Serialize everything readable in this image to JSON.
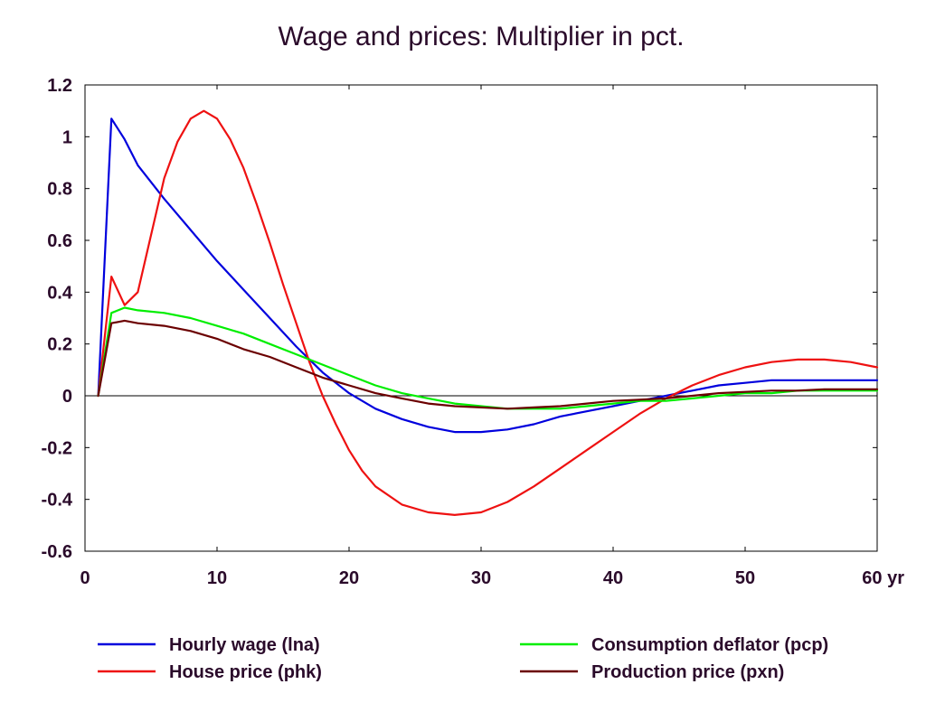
{
  "chart_data": {
    "type": "line",
    "title": "Wage and prices: Multiplier in pct.",
    "xlabel": "yr",
    "ylabel": "",
    "xlim": [
      0,
      60
    ],
    "ylim": [
      -0.6,
      1.2
    ],
    "x_ticks": [
      "0",
      "10",
      "20",
      "30",
      "40",
      "50",
      "60 yr"
    ],
    "x_tick_values": [
      0,
      10,
      20,
      30,
      40,
      50,
      60
    ],
    "y_ticks": [
      "1.2",
      "1",
      "0.8",
      "0.6",
      "0.4",
      "0.2",
      "0",
      "-0.2",
      "-0.4",
      "-0.6"
    ],
    "y_tick_values": [
      1.2,
      1,
      0.8,
      0.6,
      0.4,
      0.2,
      0,
      -0.2,
      -0.4,
      -0.6
    ],
    "grid": false,
    "legend_position": "bottom",
    "series": [
      {
        "name": "Hourly wage (lna)",
        "color": "#0000dd",
        "x": [
          1,
          2,
          3,
          4,
          6,
          8,
          10,
          12,
          14,
          16,
          18,
          20,
          22,
          24,
          26,
          28,
          30,
          32,
          34,
          36,
          38,
          40,
          42,
          44,
          46,
          48,
          50,
          52,
          54,
          56,
          58,
          60
        ],
        "values": [
          0.0,
          1.07,
          0.99,
          0.89,
          0.76,
          0.64,
          0.52,
          0.41,
          0.3,
          0.19,
          0.09,
          0.01,
          -0.05,
          -0.09,
          -0.12,
          -0.14,
          -0.14,
          -0.13,
          -0.11,
          -0.08,
          -0.06,
          -0.04,
          -0.02,
          0.0,
          0.02,
          0.04,
          0.05,
          0.06,
          0.06,
          0.06,
          0.06,
          0.06
        ]
      },
      {
        "name": "House price (phk)",
        "color": "#ee1111",
        "x": [
          1,
          2,
          3,
          4,
          5,
          6,
          7,
          8,
          9,
          10,
          11,
          12,
          13,
          14,
          15,
          16,
          17,
          18,
          19,
          20,
          21,
          22,
          24,
          26,
          28,
          30,
          32,
          34,
          36,
          38,
          40,
          42,
          44,
          46,
          48,
          50,
          52,
          54,
          56,
          58,
          60
        ],
        "values": [
          0.0,
          0.46,
          0.35,
          0.4,
          0.62,
          0.84,
          0.98,
          1.07,
          1.1,
          1.07,
          0.99,
          0.88,
          0.74,
          0.59,
          0.43,
          0.28,
          0.13,
          0.0,
          -0.11,
          -0.21,
          -0.29,
          -0.35,
          -0.42,
          -0.45,
          -0.46,
          -0.45,
          -0.41,
          -0.35,
          -0.28,
          -0.21,
          -0.14,
          -0.07,
          -0.01,
          0.04,
          0.08,
          0.11,
          0.13,
          0.14,
          0.14,
          0.13,
          0.11
        ]
      },
      {
        "name": "Consumption deflator (pcp)",
        "color": "#00ee00",
        "x": [
          1,
          2,
          3,
          4,
          6,
          8,
          10,
          12,
          14,
          16,
          18,
          20,
          22,
          24,
          26,
          28,
          30,
          32,
          34,
          36,
          38,
          40,
          42,
          44,
          46,
          48,
          50,
          52,
          54,
          56,
          58,
          60
        ],
        "values": [
          0.0,
          0.32,
          0.34,
          0.33,
          0.32,
          0.3,
          0.27,
          0.24,
          0.2,
          0.16,
          0.12,
          0.08,
          0.04,
          0.01,
          -0.01,
          -0.03,
          -0.04,
          -0.05,
          -0.05,
          -0.05,
          -0.04,
          -0.03,
          -0.02,
          -0.02,
          -0.01,
          0.0,
          0.01,
          0.01,
          0.02,
          0.02,
          0.02,
          0.02
        ]
      },
      {
        "name": "Production price (pxn)",
        "color": "#6b0000",
        "x": [
          1,
          2,
          3,
          4,
          6,
          8,
          10,
          12,
          14,
          16,
          18,
          20,
          22,
          24,
          26,
          28,
          30,
          32,
          34,
          36,
          38,
          40,
          42,
          44,
          46,
          48,
          50,
          52,
          54,
          56,
          58,
          60
        ],
        "values": [
          0.0,
          0.28,
          0.29,
          0.28,
          0.27,
          0.25,
          0.22,
          0.18,
          0.15,
          0.11,
          0.07,
          0.04,
          0.01,
          -0.01,
          -0.03,
          -0.04,
          -0.045,
          -0.05,
          -0.045,
          -0.04,
          -0.03,
          -0.02,
          -0.015,
          -0.01,
          0.0,
          0.01,
          0.015,
          0.02,
          0.02,
          0.025,
          0.025,
          0.025
        ]
      }
    ]
  }
}
